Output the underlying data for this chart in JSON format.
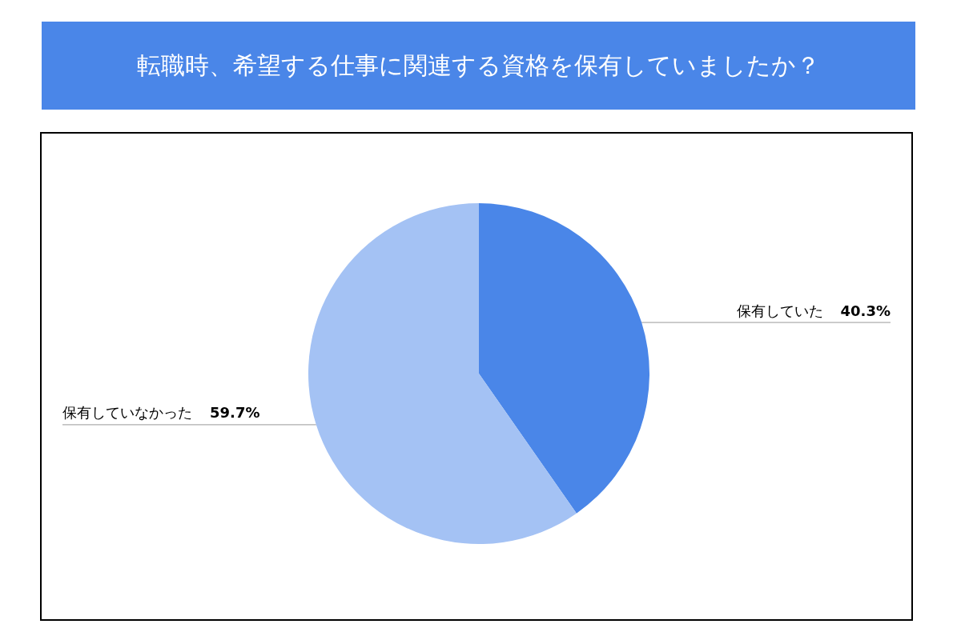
{
  "chart_data": {
    "type": "pie",
    "title": "転職時、希望する仕事に関連する資格を保有していましたか？",
    "categories": [
      "保有していた",
      "保有していなかった"
    ],
    "values": [
      40.3,
      59.7
    ],
    "colors": [
      "#4a86e8",
      "#a4c2f4"
    ],
    "value_labels": [
      "40.3%",
      "59.7%"
    ]
  }
}
